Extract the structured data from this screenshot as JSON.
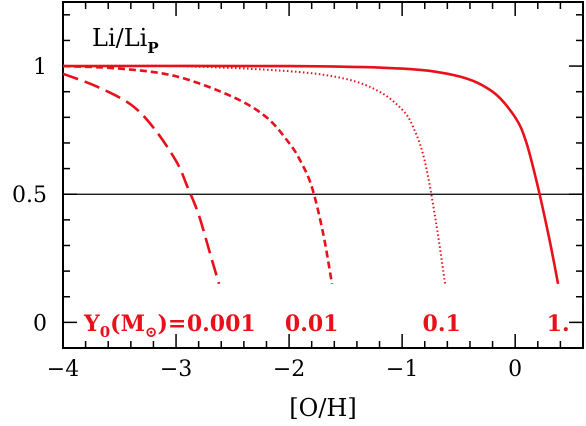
{
  "chart_data": {
    "type": "line",
    "title": "",
    "xlabel": "[O/H]",
    "ylabel": "",
    "inset_label": {
      "text": "Li/Li",
      "subscript": "P"
    },
    "xlim": [
      -4,
      0.6
    ],
    "ylim": [
      -0.1,
      1.25
    ],
    "x_ticks": [
      -4,
      -3,
      -2,
      -1,
      0
    ],
    "x_tick_labels": [
      "−4",
      "−3",
      "−2",
      "−1",
      "0"
    ],
    "y_ticks": [
      0,
      0.5,
      1
    ],
    "y_tick_labels": [
      "0",
      "0.5",
      "1"
    ],
    "reference_line": {
      "y": 0.5
    },
    "grid": false,
    "color": "#e8101a",
    "legend_prefix": {
      "main": "Y",
      "sub": "0",
      "paren_open": "(M",
      "paren_close": ")="
    },
    "series": [
      {
        "label": "0.001",
        "dash": "long-dash",
        "x": [
          -4.0,
          -3.7,
          -3.4,
          -3.2,
          -3.0,
          -2.9,
          -2.8,
          -2.7,
          -2.62
        ],
        "y": [
          0.97,
          0.92,
          0.85,
          0.76,
          0.63,
          0.53,
          0.42,
          0.27,
          0.15
        ]
      },
      {
        "label": "0.01",
        "dash": "short-dash",
        "x": [
          -4.0,
          -3.5,
          -3.0,
          -2.5,
          -2.2,
          -2.0,
          -1.9,
          -1.8,
          -1.7,
          -1.62
        ],
        "y": [
          1.0,
          0.99,
          0.96,
          0.88,
          0.8,
          0.7,
          0.63,
          0.53,
          0.35,
          0.15
        ]
      },
      {
        "label": "0.1",
        "dash": "dotted",
        "x": [
          -4.0,
          -3.0,
          -2.0,
          -1.5,
          -1.2,
          -1.0,
          -0.9,
          -0.8,
          -0.7,
          -0.62
        ],
        "y": [
          1.0,
          1.0,
          0.98,
          0.95,
          0.9,
          0.83,
          0.76,
          0.63,
          0.39,
          0.15
        ]
      },
      {
        "label": "1.",
        "dash": "solid",
        "x": [
          -4.0,
          -2.0,
          -1.0,
          -0.5,
          -0.2,
          0.0,
          0.1,
          0.2,
          0.3,
          0.38
        ],
        "y": [
          1.0,
          1.0,
          0.99,
          0.96,
          0.9,
          0.8,
          0.7,
          0.53,
          0.33,
          0.15
        ]
      }
    ],
    "label_positions_x": [
      -2.6,
      -1.8,
      -0.65,
      0.38
    ]
  }
}
